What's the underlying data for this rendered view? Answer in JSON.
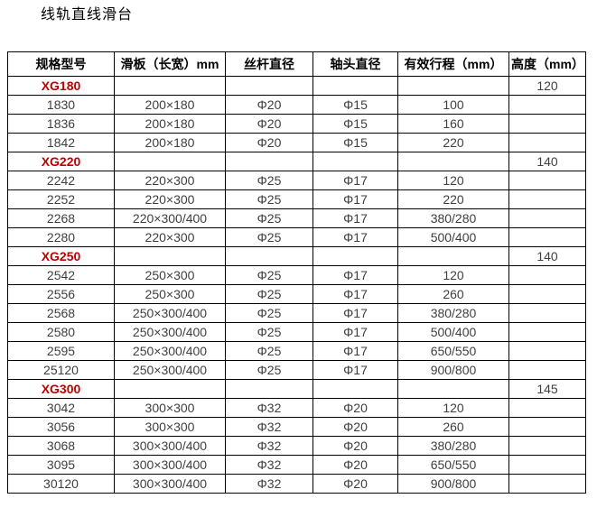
{
  "title": "线轨直线滑台",
  "colors": {
    "accent_red": "#c00000",
    "text_dark": "#3f3f3f",
    "border": "#000000"
  },
  "table": {
    "headers": [
      "规格型号",
      "滑板（长宽）mm",
      "丝杆直径",
      "轴头直径",
      "有效行程（mm）",
      "高度（mm）"
    ],
    "rows": [
      {
        "type": "group",
        "model": "XG180",
        "plate": "",
        "screw": "",
        "shaft": "",
        "stroke": "",
        "height": "120"
      },
      {
        "type": "data",
        "model": "1830",
        "plate": "200×180",
        "screw": "Φ20",
        "shaft": "Φ15",
        "stroke": "100",
        "height": ""
      },
      {
        "type": "data",
        "model": "1836",
        "plate": "200×180",
        "screw": "Φ20",
        "shaft": "Φ15",
        "stroke": "160",
        "height": ""
      },
      {
        "type": "data",
        "model": "1842",
        "plate": "200×180",
        "screw": "Φ20",
        "shaft": "Φ15",
        "stroke": "220",
        "height": ""
      },
      {
        "type": "group",
        "model": "XG220",
        "plate": "",
        "screw": "",
        "shaft": "",
        "stroke": "",
        "height": "140"
      },
      {
        "type": "data",
        "model": "2242",
        "plate": "220×300",
        "screw": "Φ25",
        "shaft": "Φ17",
        "stroke": "120",
        "height": ""
      },
      {
        "type": "data",
        "model": "2252",
        "plate": "220×300",
        "screw": "Φ25",
        "shaft": "Φ17",
        "stroke": "220",
        "height": ""
      },
      {
        "type": "data",
        "model": "2268",
        "plate": "220×300/400",
        "screw": "Φ25",
        "shaft": "Φ17",
        "stroke": "380/280",
        "height": ""
      },
      {
        "type": "data",
        "model": "2280",
        "plate": "220×300",
        "screw": "Φ25",
        "shaft": "Φ17",
        "stroke": "500/400",
        "height": ""
      },
      {
        "type": "group",
        "model": "XG250",
        "plate": "",
        "screw": "",
        "shaft": "",
        "stroke": "",
        "height": "140"
      },
      {
        "type": "data",
        "model": "2542",
        "plate": "250×300",
        "screw": "Φ25",
        "shaft": "Φ17",
        "stroke": "120",
        "height": ""
      },
      {
        "type": "data",
        "model": "2556",
        "plate": "250×300",
        "screw": "Φ25",
        "shaft": "Φ17",
        "stroke": "260",
        "height": ""
      },
      {
        "type": "data",
        "model": "2568",
        "plate": "250×300/400",
        "screw": "Φ25",
        "shaft": "Φ17",
        "stroke": "380/280",
        "height": ""
      },
      {
        "type": "data",
        "model": "2580",
        "plate": "250×300/400",
        "screw": "Φ25",
        "shaft": "Φ17",
        "stroke": "500/400",
        "height": ""
      },
      {
        "type": "data",
        "model": "2595",
        "plate": "250×300/400",
        "screw": "Φ25",
        "shaft": "Φ17",
        "stroke": "650/550",
        "height": ""
      },
      {
        "type": "data",
        "model": "25120",
        "plate": "250×300/400",
        "screw": "Φ25",
        "shaft": "Φ17",
        "stroke": "900/800",
        "height": ""
      },
      {
        "type": "group",
        "model": "XG300",
        "plate": "",
        "screw": "",
        "shaft": "",
        "stroke": "",
        "height": "145"
      },
      {
        "type": "data",
        "model": "3042",
        "plate": "300×300",
        "screw": "Φ32",
        "shaft": "Φ20",
        "stroke": "120",
        "height": ""
      },
      {
        "type": "data",
        "model": "3056",
        "plate": "300×300",
        "screw": "Φ32",
        "shaft": "Φ20",
        "stroke": "260",
        "height": ""
      },
      {
        "type": "data",
        "model": "3068",
        "plate": "300×300/400",
        "screw": "Φ32",
        "shaft": "Φ20",
        "stroke": "380/280",
        "height": ""
      },
      {
        "type": "data",
        "model": "3095",
        "plate": "300×300/400",
        "screw": "Φ32",
        "shaft": "Φ20",
        "stroke": "650/550",
        "height": ""
      },
      {
        "type": "data",
        "model": "30120",
        "plate": "300×300/400",
        "screw": "Φ32",
        "shaft": "Φ20",
        "stroke": "900/800",
        "height": ""
      }
    ]
  }
}
